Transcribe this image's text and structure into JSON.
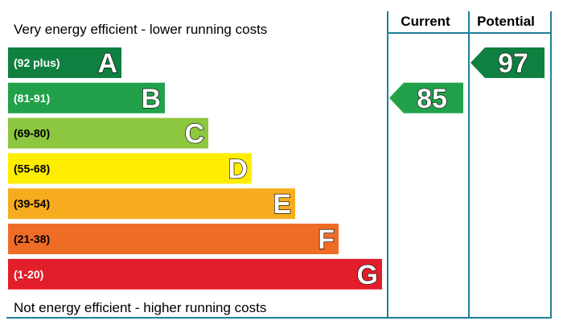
{
  "chart_data": {
    "type": "bar",
    "top_caption": "Very energy efficient - lower running costs",
    "bottom_caption": "Not energy efficient - higher running costs",
    "columns": {
      "current": "Current",
      "potential": "Potential"
    },
    "bands": [
      {
        "letter": "A",
        "range": "(92 plus)",
        "color": "#0f8040",
        "range_color": "#ffffff"
      },
      {
        "letter": "B",
        "range": "(81-91)",
        "color": "#21a24a",
        "range_color": "#ffffff"
      },
      {
        "letter": "C",
        "range": "(69-80)",
        "color": "#8dc63f",
        "range_color": "#000000"
      },
      {
        "letter": "D",
        "range": "(55-68)",
        "color": "#ffed00",
        "range_color": "#000000"
      },
      {
        "letter": "E",
        "range": "(39-54)",
        "color": "#f7ac1f",
        "range_color": "#000000"
      },
      {
        "letter": "F",
        "range": "(21-38)",
        "color": "#ef6c26",
        "range_color": "#000000"
      },
      {
        "letter": "G",
        "range": "(1-20)",
        "color": "#e31e2b",
        "range_color": "#ffffff"
      }
    ],
    "current": {
      "value": 85,
      "band": "B",
      "color": "#21a24a"
    },
    "potential": {
      "value": 97,
      "band": "A",
      "color": "#0f8040"
    }
  }
}
